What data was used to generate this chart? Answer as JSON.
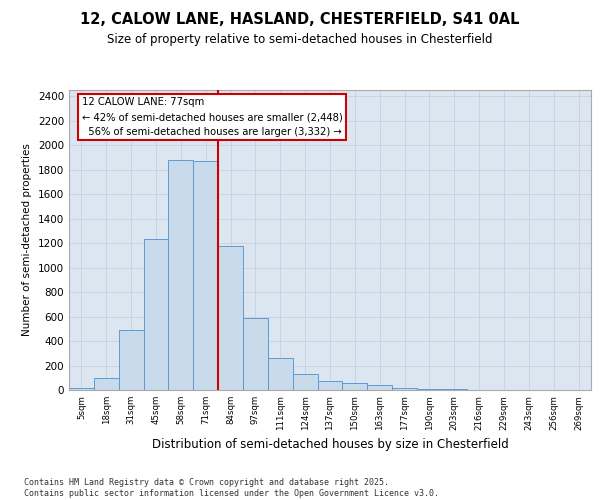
{
  "title1": "12, CALOW LANE, HASLAND, CHESTERFIELD, S41 0AL",
  "title2": "Size of property relative to semi-detached houses in Chesterfield",
  "xlabel": "Distribution of semi-detached houses by size in Chesterfield",
  "ylabel": "Number of semi-detached properties",
  "property_label": "12 CALOW LANE: 77sqm",
  "pct_smaller": 42,
  "n_smaller": 2448,
  "pct_larger": 56,
  "n_larger": 3332,
  "bin_labels": [
    "5sqm",
    "18sqm",
    "31sqm",
    "45sqm",
    "58sqm",
    "71sqm",
    "84sqm",
    "97sqm",
    "111sqm",
    "124sqm",
    "137sqm",
    "150sqm",
    "163sqm",
    "177sqm",
    "190sqm",
    "203sqm",
    "216sqm",
    "229sqm",
    "243sqm",
    "256sqm",
    "269sqm"
  ],
  "bar_values": [
    15,
    95,
    490,
    1230,
    1880,
    1870,
    1180,
    590,
    260,
    130,
    70,
    60,
    40,
    20,
    8,
    5,
    3,
    3,
    2,
    2,
    2
  ],
  "bar_color": "#c9daea",
  "bar_edge_color": "#5b9bd5",
  "vline_color": "#cc0000",
  "vline_x": 5.5,
  "annotation_box_color": "#cc0000",
  "grid_color": "#c8d4e3",
  "background_color": "#dce6f1",
  "ylim": [
    0,
    2450
  ],
  "yticks": [
    0,
    200,
    400,
    600,
    800,
    1000,
    1200,
    1400,
    1600,
    1800,
    2000,
    2200,
    2400
  ],
  "footer": "Contains HM Land Registry data © Crown copyright and database right 2025.\nContains public sector information licensed under the Open Government Licence v3.0."
}
